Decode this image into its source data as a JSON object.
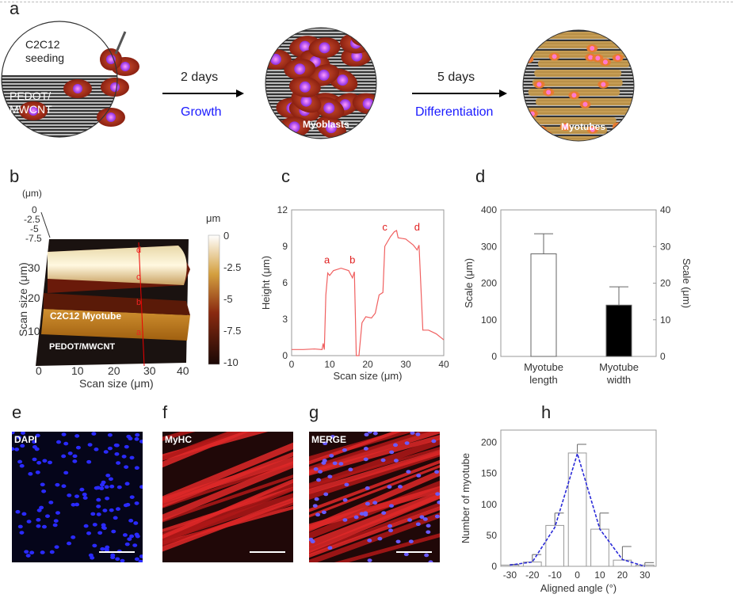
{
  "panels": {
    "a": {
      "label": "a",
      "seeding": "C2C12\nseeding",
      "substrate": "PEDOT/\nMWCNT",
      "step1_time": "2 days",
      "step1_name": "Growth",
      "step2_time": "5 days",
      "step2_name": "Differentiation",
      "circle2": "Myoblasts",
      "circle3": "Myotubes",
      "accent": "#1a1aff"
    },
    "b": {
      "label": "b",
      "z_unit": "(μm)",
      "z_ticks": [
        "0",
        "-2.5",
        "-5",
        "-7.5"
      ],
      "y_label": "Scan size (μm)",
      "x_label": "Scan size (μm)",
      "x_ticks": [
        "0",
        "10",
        "20",
        "30",
        "40"
      ],
      "y_ticks": [
        "10",
        "20",
        "30"
      ],
      "colorbar_unit": "μm",
      "colorbar_ticks": [
        "0",
        "-2.5",
        "-5",
        "-7.5",
        "-10"
      ],
      "myotube_label": "C2C12 Myotube",
      "substrate_label": "PEDOT/MWCNT",
      "markers": [
        "a",
        "b",
        "c",
        "d"
      ]
    },
    "c": {
      "label": "c"
    },
    "d": {
      "label": "d"
    },
    "e": {
      "label": "e",
      "stain": "DAPI"
    },
    "f": {
      "label": "f",
      "stain": "MyHC"
    },
    "g": {
      "label": "g",
      "stain": "MERGE"
    },
    "h": {
      "label": "h"
    }
  },
  "chart_data": [
    {
      "id": "c",
      "type": "line",
      "xlabel": "Scan size (μm)",
      "ylabel": "Height (μm)",
      "xlim": [
        0,
        40
      ],
      "ylim": [
        0,
        12
      ],
      "xticks": [
        0,
        10,
        20,
        30,
        40
      ],
      "yticks": [
        0,
        3,
        6,
        9,
        12
      ],
      "color": "#f06060",
      "x": [
        0,
        3,
        6,
        8,
        8.3,
        8.6,
        9,
        9.5,
        10,
        11,
        13,
        15,
        16,
        16.5,
        17,
        17.7,
        18.5,
        19.5,
        21,
        22,
        23,
        24,
        24.5,
        26,
        27,
        27.6,
        28,
        30,
        32,
        33,
        33.5,
        34.5,
        36,
        38,
        40
      ],
      "y": [
        0.5,
        0.5,
        0.55,
        0.5,
        1.0,
        0.5,
        5,
        6.8,
        6.6,
        7.0,
        7.2,
        7.0,
        6.4,
        6.9,
        0,
        0,
        2.7,
        3.2,
        3.1,
        3.5,
        5.0,
        5.2,
        9.0,
        9.8,
        10.2,
        10.3,
        9.7,
        9.6,
        9.1,
        8.7,
        9.1,
        2.1,
        2.1,
        1.8,
        1.3
      ],
      "annotations": [
        {
          "text": "a",
          "x": 9.3,
          "y": 7.6
        },
        {
          "text": "b",
          "x": 16,
          "y": 7.6
        },
        {
          "text": "c",
          "x": 24.5,
          "y": 10.3
        },
        {
          "text": "d",
          "x": 33,
          "y": 10.3
        }
      ]
    },
    {
      "id": "d",
      "type": "bar",
      "categories": [
        "Myotube\nlength",
        "Myotube\nwidth"
      ],
      "ylabel": "Scale (μm)",
      "ylabel_right": "Scale (μm)",
      "ylim": [
        0,
        400
      ],
      "ylim_right": [
        0,
        40
      ],
      "yticks": [
        0,
        100,
        200,
        300,
        400
      ],
      "yticks_right": [
        0,
        10,
        20,
        30,
        40
      ],
      "series": [
        {
          "name": "Myotube length",
          "axis": "left",
          "value": 280,
          "error": 55,
          "fill": "#ffffff"
        },
        {
          "name": "Myotube width",
          "axis": "right",
          "value": 14,
          "error": 5,
          "fill": "#000000"
        }
      ]
    },
    {
      "id": "h",
      "type": "bar",
      "xlabel": "Aligned angle (°)",
      "ylabel": "Number of myotube",
      "xlim": [
        -34,
        35
      ],
      "ylim": [
        0,
        220
      ],
      "xticks": [
        -30,
        -20,
        -10,
        0,
        10,
        20,
        30
      ],
      "yticks": [
        0,
        50,
        100,
        150,
        200
      ],
      "categories": [
        -30,
        -20,
        -10,
        0,
        10,
        20,
        30
      ],
      "values": [
        2,
        7,
        66,
        183,
        60,
        10,
        2
      ],
      "error_top": [
        3,
        19,
        86,
        197,
        86,
        32,
        6
      ],
      "fit_line": {
        "color": "#2a2ad8",
        "style": "dashed",
        "y": [
          2,
          7,
          63,
          182,
          60,
          11,
          0
        ]
      }
    }
  ]
}
